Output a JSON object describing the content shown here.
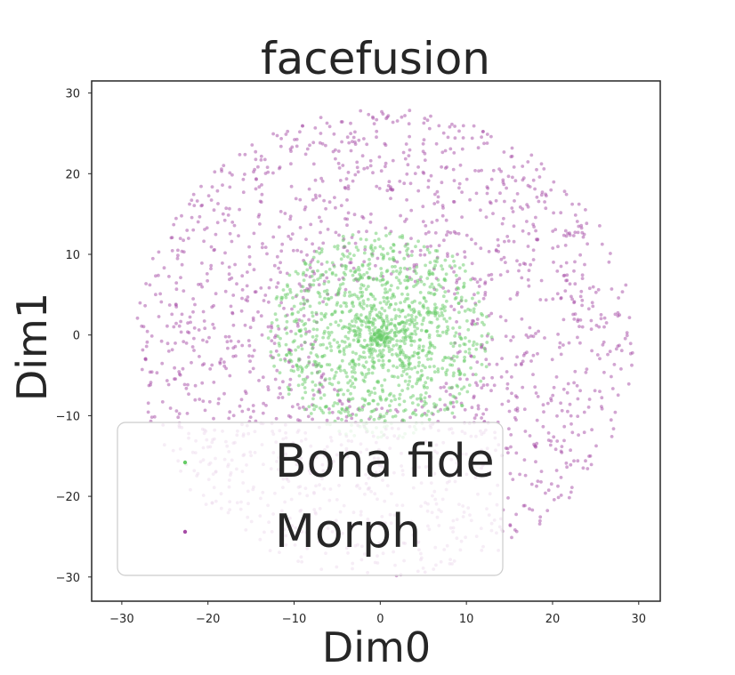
{
  "chart_data": {
    "type": "scatter",
    "title": "facefusion",
    "xlabel": "Dim0",
    "ylabel": "Dim1",
    "xlim": [
      -33.5,
      32.5
    ],
    "ylim": [
      -33,
      31.5
    ],
    "xticks": [
      -30,
      -20,
      -10,
      0,
      10,
      20,
      30
    ],
    "yticks": [
      -30,
      -20,
      -10,
      0,
      10,
      20,
      30
    ],
    "xtick_labels": [
      "−30",
      "−20",
      "−10",
      "0",
      "10",
      "20",
      "30"
    ],
    "ytick_labels": [
      "−30",
      "−20",
      "−10",
      "0",
      "10",
      "20",
      "30"
    ],
    "grid": false,
    "legend_position": "lower-left",
    "series": [
      {
        "name": "Morph",
        "color": "#a64ca6",
        "distribution": "ring",
        "center": [
          0.5,
          -1
        ],
        "inner_radius": 8,
        "outer_radius": 29,
        "approx_count": 1750
      },
      {
        "name": "Bona fide",
        "color": "#66cc66",
        "distribution": "disk-concentrated",
        "center": [
          0,
          0
        ],
        "outer_radius": 13,
        "approx_count": 1300
      }
    ],
    "legend": [
      {
        "label": "Bona fide",
        "color": "#66cc66"
      },
      {
        "label": "Morph",
        "color": "#a64ca6"
      }
    ]
  }
}
